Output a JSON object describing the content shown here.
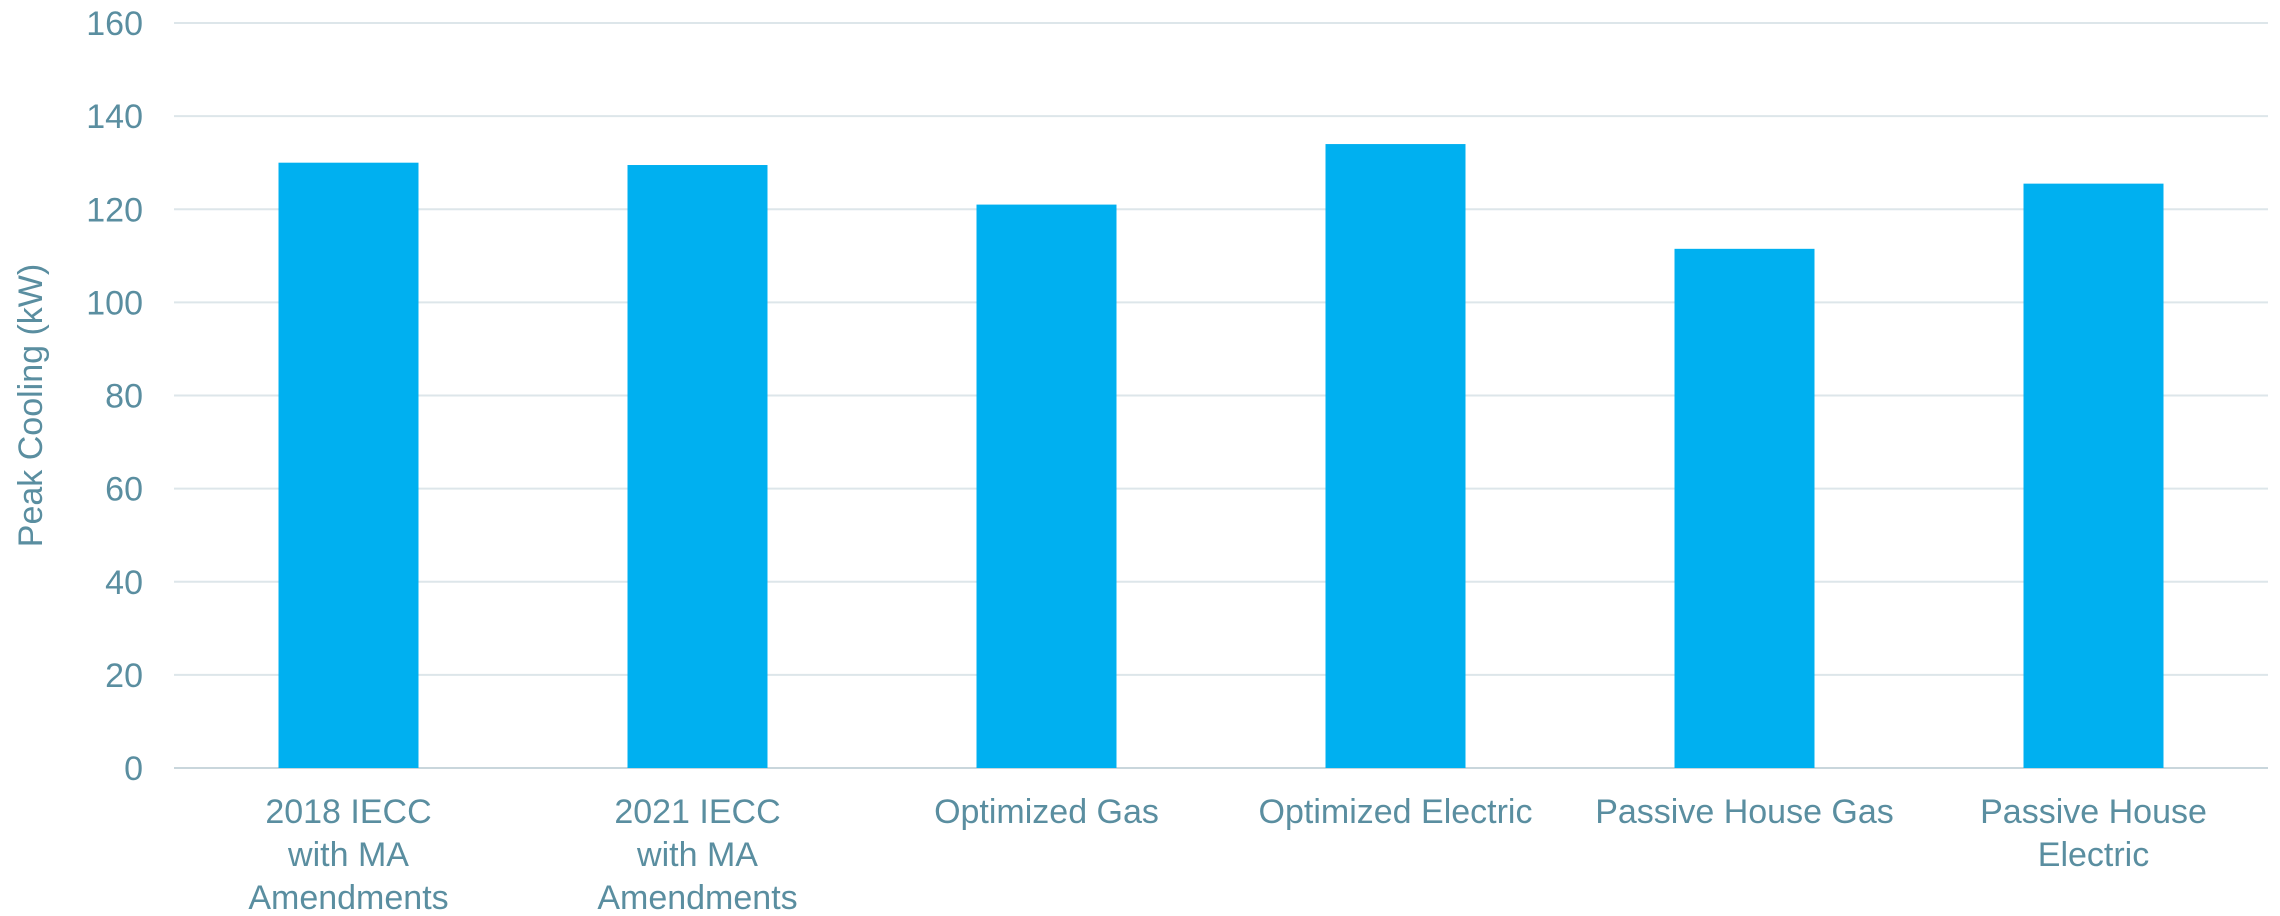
{
  "chart_data": {
    "type": "bar",
    "title": "",
    "xlabel": "",
    "ylabel": "Peak Cooling (kW)",
    "ylim": [
      0,
      160
    ],
    "yticks": [
      0,
      20,
      40,
      60,
      80,
      100,
      120,
      140,
      160
    ],
    "grid": true,
    "legend": "none",
    "bar_color": "#00b0f0",
    "categories": [
      [
        "2018 IECC",
        "with MA",
        "Amendments"
      ],
      [
        "2021 IECC",
        "with MA",
        "Amendments"
      ],
      [
        "Optimized Gas"
      ],
      [
        "Optimized Electric"
      ],
      [
        "Passive House Gas"
      ],
      [
        "Passive House",
        "Electric"
      ]
    ],
    "values": [
      130,
      129.5,
      121,
      134,
      111.5,
      125.5
    ]
  }
}
